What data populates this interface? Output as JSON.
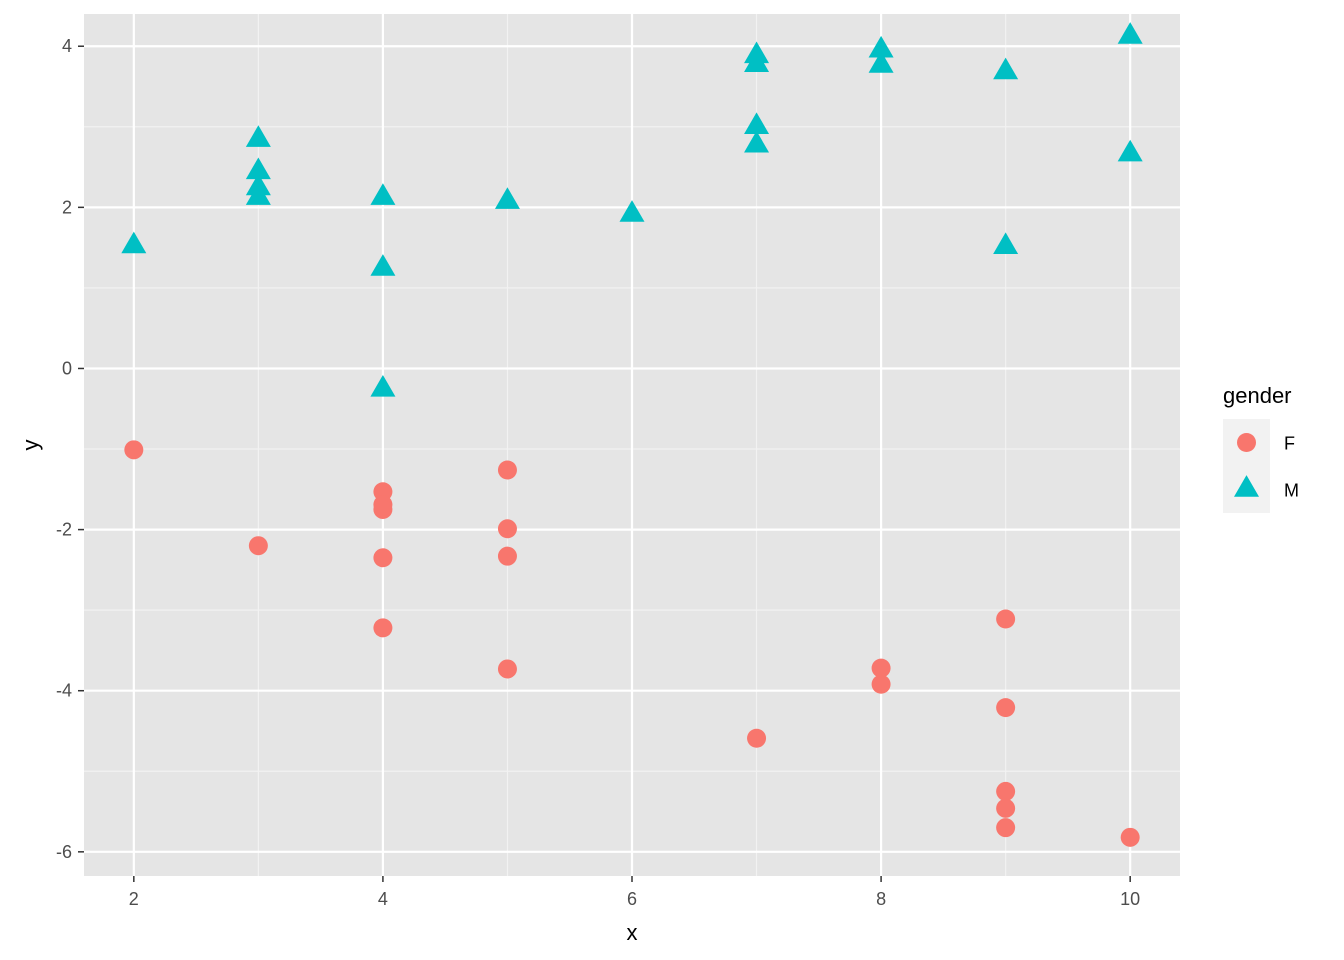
{
  "chart_data": {
    "type": "scatter",
    "xlabel": "x",
    "ylabel": "y",
    "xlim": [
      1.6,
      10.4
    ],
    "ylim": [
      -6.3,
      4.4
    ],
    "x_ticks": [
      2,
      4,
      6,
      8,
      10
    ],
    "y_ticks": [
      -6,
      -4,
      -2,
      0,
      2,
      4
    ],
    "x_tick_labels": [
      "2",
      "4",
      "6",
      "8",
      "10"
    ],
    "y_tick_labels": [
      "-6",
      "-4",
      "-2",
      "0",
      "2",
      "4"
    ],
    "grid": true,
    "legend": {
      "title": "gender",
      "placement": "right",
      "entries": [
        {
          "label": "F",
          "shape": "circle",
          "color": "#F8766D"
        },
        {
          "label": "M",
          "shape": "triangle",
          "color": "#00BFC4"
        }
      ]
    },
    "series": [
      {
        "name": "F",
        "color": "#F8766D",
        "shape": "circle",
        "points": [
          [
            2,
            -1.01
          ],
          [
            3,
            -2.2
          ],
          [
            4,
            -1.53
          ],
          [
            4,
            -1.69
          ],
          [
            4,
            -1.75
          ],
          [
            4,
            -2.35
          ],
          [
            4,
            -3.22
          ],
          [
            5,
            -1.26
          ],
          [
            5,
            -1.99
          ],
          [
            5,
            -2.33
          ],
          [
            5,
            -3.73
          ],
          [
            7,
            -4.59
          ],
          [
            8,
            -3.72
          ],
          [
            8,
            -3.92
          ],
          [
            9,
            -3.11
          ],
          [
            9,
            -4.21
          ],
          [
            9,
            -5.25
          ],
          [
            9,
            -5.46
          ],
          [
            9,
            -5.7
          ],
          [
            10,
            -5.82
          ]
        ]
      },
      {
        "name": "M",
        "color": "#00BFC4",
        "shape": "triangle",
        "points": [
          [
            2,
            1.52
          ],
          [
            3,
            2.84
          ],
          [
            3,
            2.44
          ],
          [
            3,
            2.24
          ],
          [
            3,
            2.12
          ],
          [
            4,
            2.12
          ],
          [
            4,
            1.24
          ],
          [
            4,
            -0.26
          ],
          [
            5,
            2.07
          ],
          [
            6,
            1.91
          ],
          [
            7,
            3.88
          ],
          [
            7,
            3.77
          ],
          [
            7,
            3.0
          ],
          [
            7,
            2.77
          ],
          [
            8,
            3.95
          ],
          [
            8,
            3.76
          ],
          [
            9,
            3.68
          ],
          [
            9,
            1.51
          ],
          [
            10,
            4.12
          ],
          [
            10,
            2.66
          ]
        ]
      }
    ]
  }
}
